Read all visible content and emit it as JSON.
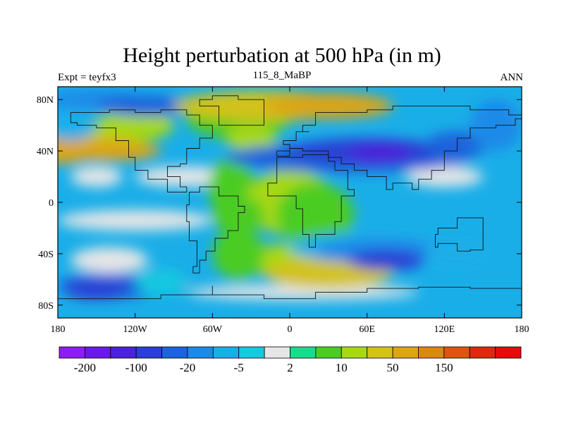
{
  "header": {
    "title": "Height perturbation at 500 hPa (in m)",
    "left": "Expt = teyfx3",
    "center": "115_8_MaBP",
    "right": "ANN"
  },
  "chart_data": {
    "type": "heatmap",
    "title": "Height perturbation at 500 hPa (in m)",
    "variable": "500 hPa geopotential height perturbation",
    "units": "m",
    "x_ticks": [
      "180",
      "120W",
      "60W",
      "0",
      "60E",
      "120E",
      "180"
    ],
    "x_values": [
      -180,
      -120,
      -60,
      0,
      60,
      120,
      180
    ],
    "y_ticks": [
      "80N",
      "40N",
      "0",
      "40S",
      "80S"
    ],
    "y_values": [
      80,
      40,
      0,
      -40,
      -80
    ],
    "xlim": [
      -180,
      180
    ],
    "ylim": [
      -90,
      90
    ],
    "colorbar": {
      "colors": [
        "#8c1ef0",
        "#6a1ae6",
        "#4a22d8",
        "#2b3fd4",
        "#1b64dc",
        "#1b8ae8",
        "#1aaee8",
        "#18c8e0",
        "#e6e6e6",
        "#18dc8c",
        "#4ccc22",
        "#a6d818",
        "#d2c21a",
        "#dca416",
        "#dc8614",
        "#dc5610",
        "#dc2a0e",
        "#e60a0a"
      ],
      "labels": [
        "-200",
        "-100",
        "-20",
        "-5",
        "2",
        "10",
        "50",
        "150"
      ],
      "label_after_boundary": [
        1,
        3,
        5,
        7,
        9,
        11,
        13,
        15
      ]
    },
    "features": [
      {
        "region": "North Atlantic / Greenland",
        "sign": "positive",
        "level": "50"
      },
      {
        "region": "North Pacific 40N",
        "sign": "positive",
        "level": "50-150"
      },
      {
        "region": "North Atlantic 40N",
        "sign": "positive",
        "level": "50-150"
      },
      {
        "region": "Eurasia 40N",
        "sign": "negative",
        "level": "-100"
      },
      {
        "region": "Southern Indian Ocean 40S",
        "sign": "negative",
        "level": "-100"
      },
      {
        "region": "South Pacific 70S",
        "sign": "negative",
        "level": "-20 to -100"
      },
      {
        "region": "South Atlantic 60S",
        "sign": "positive",
        "level": "50"
      },
      {
        "region": "Tropical Atlantic / Africa",
        "sign": "positive",
        "level": "10"
      }
    ]
  }
}
